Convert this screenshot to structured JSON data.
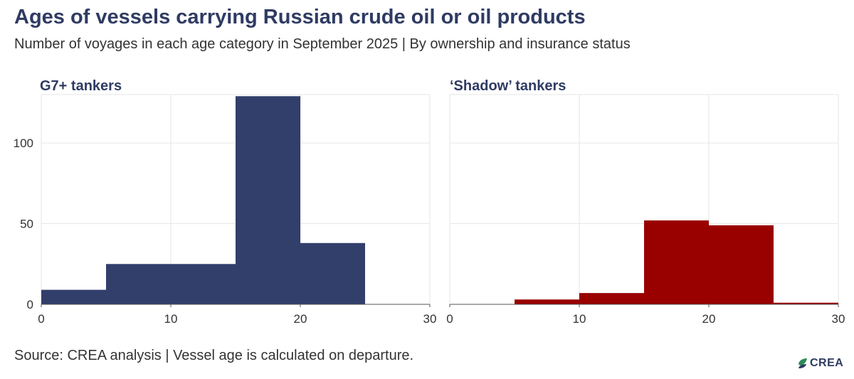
{
  "header": {
    "title": "Ages of vessels carrying Russian crude oil or oil products",
    "subtitle": "Number of voyages in each age category in September 2025 | By ownership and insurance status"
  },
  "footer": {
    "source": "Source: CREA analysis | Vessel age is calculated on departure.",
    "logo_text": "CREA"
  },
  "colors": {
    "g7": "#323f6b",
    "shadow": "#990000",
    "title": "#2f3b63",
    "grid": "#e6e6e6"
  },
  "chart_data": [
    {
      "type": "bar",
      "title": "G7+ tankers",
      "color": "#323f6b",
      "bins": [
        {
          "x0": 0,
          "x1": 5,
          "value": 9
        },
        {
          "x0": 5,
          "x1": 10,
          "value": 25
        },
        {
          "x0": 10,
          "x1": 15,
          "value": 25
        },
        {
          "x0": 15,
          "x1": 20,
          "value": 129
        },
        {
          "x0": 20,
          "x1": 25,
          "value": 38
        },
        {
          "x0": 25,
          "x1": 30,
          "value": 0
        }
      ],
      "xlim": [
        0,
        30
      ],
      "ylim": [
        0,
        130
      ],
      "xticks": [
        0,
        10,
        20,
        30
      ],
      "yticks": [
        0,
        50,
        100
      ],
      "grid": true
    },
    {
      "type": "bar",
      "title": "‘Shadow’ tankers",
      "color": "#990000",
      "bins": [
        {
          "x0": 0,
          "x1": 5,
          "value": 0
        },
        {
          "x0": 5,
          "x1": 10,
          "value": 3
        },
        {
          "x0": 10,
          "x1": 15,
          "value": 7
        },
        {
          "x0": 15,
          "x1": 20,
          "value": 52
        },
        {
          "x0": 20,
          "x1": 25,
          "value": 49
        },
        {
          "x0": 25,
          "x1": 30,
          "value": 1
        }
      ],
      "xlim": [
        0,
        30
      ],
      "ylim": [
        0,
        130
      ],
      "xticks": [
        0,
        10,
        20,
        30
      ],
      "yticks": [
        0,
        50,
        100
      ],
      "grid": true
    }
  ]
}
